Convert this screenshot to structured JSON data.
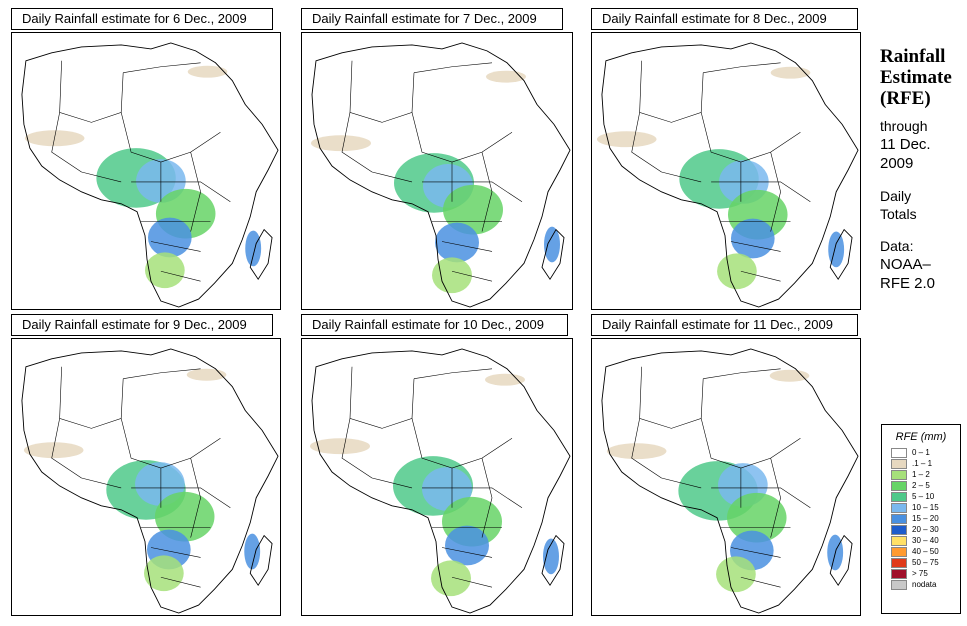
{
  "panels": [
    {
      "title": "Daily Rainfall estimate for  6 Dec., 2009"
    },
    {
      "title": "Daily Rainfall estimate for  7 Dec., 2009"
    },
    {
      "title": "Daily Rainfall estimate for  8 Dec., 2009"
    },
    {
      "title": "Daily Rainfall estimate for  9 Dec., 2009"
    },
    {
      "title": "Daily Rainfall estimate for  10 Dec., 2009"
    },
    {
      "title": "Daily Rainfall estimate for  11 Dec., 2009"
    }
  ],
  "side": {
    "title_line1": "Rainfall",
    "title_line2": "Estimate",
    "title_line3": "(RFE)",
    "through": "through",
    "date_line1": "11 Dec.",
    "date_line2": "2009",
    "totals_line1": "Daily",
    "totals_line2": "Totals",
    "data_line1": "Data:",
    "data_line2": "NOAA–",
    "data_line3": "RFE 2.0"
  },
  "legend": {
    "title": "RFE (mm)",
    "items": [
      {
        "label": "0 – 1",
        "color": "#ffffff"
      },
      {
        "label": ".1 – 1",
        "color": "#e6d8c0"
      },
      {
        "label": "1 – 2",
        "color": "#a6e07a"
      },
      {
        "label": "2 – 5",
        "color": "#66d466"
      },
      {
        "label": "5 – 10",
        "color": "#4fc98a"
      },
      {
        "label": "10 – 15",
        "color": "#7ab8ee"
      },
      {
        "label": "15 – 20",
        "color": "#4a90e0"
      },
      {
        "label": "20 – 30",
        "color": "#1e5ccc"
      },
      {
        "label": "30 – 40",
        "color": "#ffe066"
      },
      {
        "label": "40 – 50",
        "color": "#ff9a30"
      },
      {
        "label": "50 – 75",
        "color": "#e03a1a"
      },
      {
        "label": "> 75",
        "color": "#a0102a"
      },
      {
        "label": "nodata",
        "color": "#c8c8c8"
      }
    ]
  }
}
